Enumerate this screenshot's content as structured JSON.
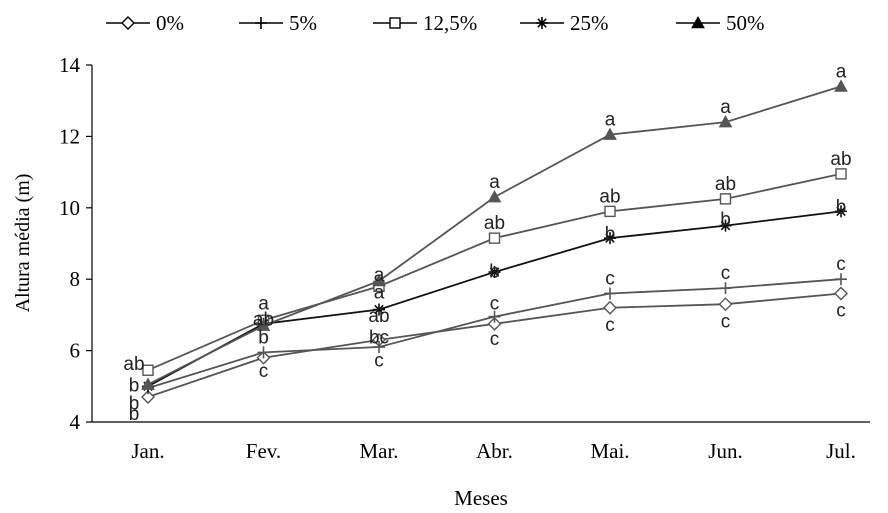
{
  "chart_data": {
    "type": "line",
    "xlabel": "Meses",
    "ylabel": "Altura média (m)",
    "categories": [
      "Jan.",
      "Fev.",
      "Mar.",
      "Abr.",
      "Mai.",
      "Jun.",
      "Jul."
    ],
    "ylim": [
      4,
      14
    ],
    "yticks": [
      "4",
      "6",
      "8",
      "10",
      "12",
      "14"
    ],
    "grid": false,
    "legend_position": "top",
    "series": [
      {
        "name": "0%",
        "marker": "diamond-open",
        "color": "#555555",
        "values": [
          4.7,
          5.8,
          6.3,
          6.75,
          7.2,
          7.3,
          7.6
        ],
        "letters": [
          "b",
          "c",
          "c",
          "c",
          "c",
          "c",
          "c"
        ]
      },
      {
        "name": "5%",
        "marker": "plus",
        "color": "#555555",
        "values": [
          4.95,
          5.95,
          6.1,
          6.95,
          7.6,
          7.75,
          8.0
        ],
        "letters": [
          "b",
          "c",
          "c",
          "c",
          "c",
          "c",
          "c"
        ]
      },
      {
        "name": "12,5%",
        "marker": "square-open",
        "color": "#555555",
        "values": [
          5.45,
          6.85,
          7.8,
          9.15,
          9.9,
          10.25,
          10.95
        ],
        "letters": [
          "ab",
          "ab",
          "a",
          "ab",
          "ab",
          "ab",
          "ab"
        ]
      },
      {
        "name": "25%",
        "marker": "asterisk",
        "color": "#111111",
        "values": [
          5.0,
          6.75,
          7.15,
          8.2,
          9.15,
          9.5,
          9.9
        ],
        "letters": [
          "b",
          "b",
          "ab",
          "b",
          "b",
          "b",
          "b"
        ]
      },
      {
        "name": "50%",
        "marker": "triangle-filled",
        "color": "#555555",
        "values": [
          5.05,
          6.7,
          7.95,
          10.3,
          12.05,
          12.4,
          13.4
        ],
        "letters": [
          "a",
          "a",
          "a",
          "a",
          "a",
          "a",
          "a"
        ]
      }
    ],
    "letter_annotations": [
      {
        "text": "ab",
        "x": 0,
        "y": 5.65
      },
      {
        "text": "b",
        "x": 0,
        "y": 5.05
      },
      {
        "text": "b",
        "x": 0,
        "y": 4.55
      },
      {
        "text": "b",
        "x": 0,
        "y": 4.25
      },
      {
        "text": "ab",
        "x": 1,
        "y": 6.9
      },
      {
        "text": "a",
        "x": 1,
        "y": 7.35
      },
      {
        "text": "b",
        "x": 1,
        "y": 6.4
      },
      {
        "text": "c",
        "x": 1,
        "y": 5.45
      },
      {
        "text": "a",
        "x": 2,
        "y": 8.15
      },
      {
        "text": "a",
        "x": 2,
        "y": 7.65
      },
      {
        "text": "ab",
        "x": 2,
        "y": 7.0
      },
      {
        "text": "bc",
        "x": 2,
        "y": 6.4
      },
      {
        "text": "c",
        "x": 2,
        "y": 5.75
      },
      {
        "text": "a",
        "x": 3,
        "y": 10.75
      },
      {
        "text": "ab",
        "x": 3,
        "y": 9.6
      },
      {
        "text": "b",
        "x": 3,
        "y": 8.25
      },
      {
        "text": "c",
        "x": 3,
        "y": 7.35
      },
      {
        "text": "c",
        "x": 3,
        "y": 6.35
      },
      {
        "text": "a",
        "x": 4,
        "y": 12.5
      },
      {
        "text": "ab",
        "x": 4,
        "y": 10.35
      },
      {
        "text": "b",
        "x": 4,
        "y": 9.3
      },
      {
        "text": "c",
        "x": 4,
        "y": 8.05
      },
      {
        "text": "c",
        "x": 4,
        "y": 6.75
      },
      {
        "text": "a",
        "x": 5,
        "y": 12.85
      },
      {
        "text": "ab",
        "x": 5,
        "y": 10.7
      },
      {
        "text": "b",
        "x": 5,
        "y": 9.7
      },
      {
        "text": "c",
        "x": 5,
        "y": 8.2
      },
      {
        "text": "c",
        "x": 5,
        "y": 6.85
      },
      {
        "text": "a",
        "x": 6,
        "y": 13.85
      },
      {
        "text": "ab",
        "x": 6,
        "y": 11.4
      },
      {
        "text": "b",
        "x": 6,
        "y": 10.05
      },
      {
        "text": "c",
        "x": 6,
        "y": 8.45
      },
      {
        "text": "c",
        "x": 6,
        "y": 7.15
      }
    ]
  }
}
